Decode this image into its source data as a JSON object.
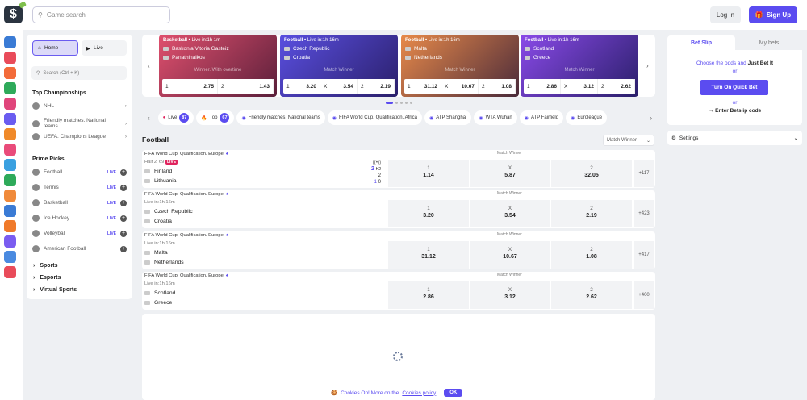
{
  "header": {
    "search_placeholder": "Game search",
    "login": "Log In",
    "signup": "Sign Up",
    "logo": "$"
  },
  "rail_colors": [
    "#3a7bd5",
    "#e94b5a",
    "#f36b3a",
    "#2eaa5a",
    "#e0457b",
    "#6a5cf0",
    "#f08a2a",
    "#e94b7a",
    "#3aa0e0",
    "#2eaa5a",
    "#f08a3a",
    "#3a7bd5",
    "#f07a2a",
    "#7a5cf0",
    "#4a8ae0",
    "#e94b5a"
  ],
  "left": {
    "home": "Home",
    "live": "Live",
    "search_placeholder": "Search (Ctrl + K)",
    "top_title": "Top Championships",
    "top": [
      {
        "label": "NHL"
      },
      {
        "label": "Friendly matches. National teams"
      },
      {
        "label": "UEFA. Champions League"
      }
    ],
    "prime_title": "Prime Picks",
    "prime": [
      {
        "label": "Football",
        "live": "LIVE"
      },
      {
        "label": "Tennis",
        "live": "LIVE"
      },
      {
        "label": "Basketball",
        "live": "LIVE"
      },
      {
        "label": "Ice Hockey",
        "live": "LIVE"
      },
      {
        "label": "Volleyball",
        "live": "LIVE"
      },
      {
        "label": "American Football",
        "live": ""
      }
    ],
    "collapsibles": [
      "Sports",
      "Esports",
      "Virtual Sports"
    ]
  },
  "carousel": [
    {
      "sport": "Basketball",
      "time": "Live in:1h 1m",
      "team1": "Baskonia Vitoria Gasteiz",
      "team2": "Panathinaikos",
      "market": "Winner. With overtime",
      "odds": [
        [
          "1",
          "2.75"
        ],
        [
          "2",
          "1.43"
        ]
      ],
      "color": "linear-gradient(135deg,#e0506e,#5a1f3a)"
    },
    {
      "sport": "Football",
      "time": "Live in:1h 16m",
      "team1": "Czech Republic",
      "team2": "Croatia",
      "market": "Match Winner",
      "odds": [
        [
          "1",
          "3.20"
        ],
        [
          "X",
          "3.54"
        ],
        [
          "2",
          "2.19"
        ]
      ],
      "color": "linear-gradient(135deg,#5a4fe0,#2a1f6a)"
    },
    {
      "sport": "Football",
      "time": "Live in:1h 16m",
      "team1": "Malta",
      "team2": "Netherlands",
      "market": "Match Winner",
      "odds": [
        [
          "1",
          "31.12"
        ],
        [
          "X",
          "10.67"
        ],
        [
          "2",
          "1.08"
        ]
      ],
      "color": "linear-gradient(135deg,#e88a4a,#4a2a3a)"
    },
    {
      "sport": "Football",
      "time": "Live in:1h 16m",
      "team1": "Scotland",
      "team2": "Greece",
      "market": "Match Winner",
      "odds": [
        [
          "1",
          "2.86"
        ],
        [
          "X",
          "3.12"
        ],
        [
          "2",
          "2.62"
        ]
      ],
      "color": "linear-gradient(135deg,#8a4ae8,#2a1f6a)"
    }
  ],
  "chips": [
    {
      "label": "Live",
      "count": "87"
    },
    {
      "label": "Top",
      "count": "67"
    },
    {
      "label": "Friendly matches. National teams"
    },
    {
      "label": "FIFA World Cup. Qualification. Africa"
    },
    {
      "label": "ATP Shanghai"
    },
    {
      "label": "WTA Wuhan"
    },
    {
      "label": "ATP Fairfield"
    },
    {
      "label": "Euroleague"
    }
  ],
  "main": {
    "title": "Football",
    "market_select": "Match Winner"
  },
  "matches": [
    {
      "league": "FIFA World Cup. Qualification. Europe",
      "status": "Half 2' 69",
      "live": "LIVE",
      "team1": "Finland",
      "team2": "Lithuania",
      "score1": "2",
      "score2": "1",
      "h2": "H2",
      "h2s1": "2",
      "h2s2": "0",
      "market": "Match Winner",
      "odds": [
        [
          "1",
          "1.14"
        ],
        [
          "X",
          "5.87"
        ],
        [
          "2",
          "32.05"
        ]
      ],
      "more": "+117"
    },
    {
      "league": "FIFA World Cup. Qualification. Europe",
      "status": "Live in:1h 16m",
      "team1": "Czech Republic",
      "team2": "Croatia",
      "market": "Match Winner",
      "odds": [
        [
          "1",
          "3.20"
        ],
        [
          "X",
          "3.54"
        ],
        [
          "2",
          "2.19"
        ]
      ],
      "more": "+423"
    },
    {
      "league": "FIFA World Cup. Qualification. Europe",
      "status": "Live in:1h 16m",
      "team1": "Malta",
      "team2": "Netherlands",
      "market": "Match Winner",
      "odds": [
        [
          "1",
          "31.12"
        ],
        [
          "X",
          "10.67"
        ],
        [
          "2",
          "1.08"
        ]
      ],
      "more": "+417"
    },
    {
      "league": "FIFA World Cup. Qualification. Europe",
      "status": "Live in:1h 16m",
      "team1": "Scotland",
      "team2": "Greece",
      "market": "Match Winner",
      "odds": [
        [
          "1",
          "2.86"
        ],
        [
          "X",
          "3.12"
        ],
        [
          "2",
          "2.62"
        ]
      ],
      "more": "+400"
    }
  ],
  "betslip": {
    "tab1": "Bet Slip",
    "tab2": "My bets",
    "prompt": "Choose the odds and ",
    "prompt_bold": "Just Bet It",
    "or": "or",
    "quick": "Turn On Quick Bet",
    "code": "→ Enter Betslip code",
    "settings": "Settings"
  },
  "cookie": {
    "text": "Cookies On! More on the ",
    "link": "Cookies policy",
    "ok": "OK"
  }
}
